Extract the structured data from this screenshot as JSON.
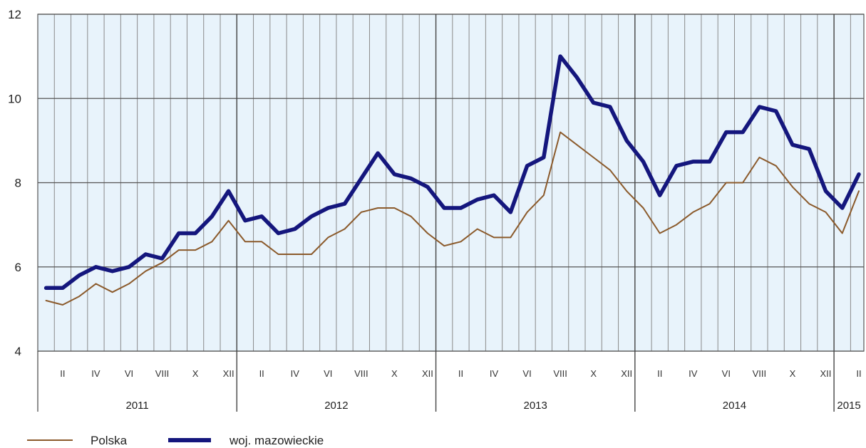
{
  "chart_data": {
    "type": "line",
    "title": "",
    "xlabel": "",
    "ylabel": "",
    "ylim": [
      4,
      12
    ],
    "yticks": [
      4,
      6,
      8,
      10,
      12
    ],
    "grid": true,
    "legend_position": "bottom-left",
    "colors": {
      "plot_background": "#e8f3fb",
      "Polska": "#8b5a2b",
      "woj. mazowieckie": "#14167d"
    },
    "month_tick_labels": [
      "II",
      "IV",
      "VI",
      "VIII",
      "X",
      "XII"
    ],
    "years": [
      "2011",
      "2012",
      "2013",
      "2014",
      "2015"
    ],
    "month_labels_by_year": {
      "2011": [
        "II",
        "IV",
        "VI",
        "VIII",
        "X",
        "XII"
      ],
      "2012": [
        "II",
        "IV",
        "VI",
        "VIII",
        "X",
        "XII"
      ],
      "2013": [
        "II",
        "IV",
        "VI",
        "VIII",
        "X",
        "XII"
      ],
      "2014": [
        "II",
        "IV",
        "VI",
        "VIII",
        "X",
        "XII"
      ],
      "2015": [
        "II"
      ]
    },
    "x": [
      "2011-01",
      "2011-02",
      "2011-03",
      "2011-04",
      "2011-05",
      "2011-06",
      "2011-07",
      "2011-08",
      "2011-09",
      "2011-10",
      "2011-11",
      "2011-12",
      "2012-01",
      "2012-02",
      "2012-03",
      "2012-04",
      "2012-05",
      "2012-06",
      "2012-07",
      "2012-08",
      "2012-09",
      "2012-10",
      "2012-11",
      "2012-12",
      "2013-01",
      "2013-02",
      "2013-03",
      "2013-04",
      "2013-05",
      "2013-06",
      "2013-07",
      "2013-08",
      "2013-09",
      "2013-10",
      "2013-11",
      "2013-12",
      "2014-01",
      "2014-02",
      "2014-03",
      "2014-04",
      "2014-05",
      "2014-06",
      "2014-07",
      "2014-08",
      "2014-09",
      "2014-10",
      "2014-11",
      "2014-12",
      "2015-01",
      "2015-02"
    ],
    "series": [
      {
        "name": "Polska",
        "values": [
          5.2,
          5.1,
          5.3,
          5.6,
          5.4,
          5.6,
          5.9,
          6.1,
          6.4,
          6.4,
          6.6,
          7.1,
          6.6,
          6.6,
          6.3,
          6.3,
          6.3,
          6.7,
          6.9,
          7.3,
          7.4,
          7.4,
          7.2,
          6.8,
          6.5,
          6.6,
          6.9,
          6.7,
          6.7,
          7.3,
          7.7,
          9.2,
          8.9,
          8.6,
          8.3,
          7.8,
          7.4,
          6.8,
          7.0,
          7.3,
          7.5,
          8.0,
          8.0,
          8.6,
          8.4,
          7.9,
          7.5,
          7.3,
          6.8,
          7.8
        ]
      },
      {
        "name": "woj. mazowieckie",
        "values": [
          5.5,
          5.5,
          5.8,
          6.0,
          5.9,
          6.0,
          6.3,
          6.2,
          6.8,
          6.8,
          7.2,
          7.8,
          7.1,
          7.2,
          6.8,
          6.9,
          7.2,
          7.4,
          7.5,
          8.1,
          8.7,
          8.2,
          8.1,
          7.9,
          7.4,
          7.4,
          7.6,
          7.7,
          7.3,
          8.4,
          8.6,
          11.0,
          10.5,
          9.9,
          9.8,
          9.0,
          8.5,
          7.7,
          8.4,
          8.5,
          8.5,
          9.2,
          9.2,
          9.8,
          9.7,
          8.9,
          8.8,
          7.8,
          7.4,
          8.2
        ]
      }
    ]
  }
}
